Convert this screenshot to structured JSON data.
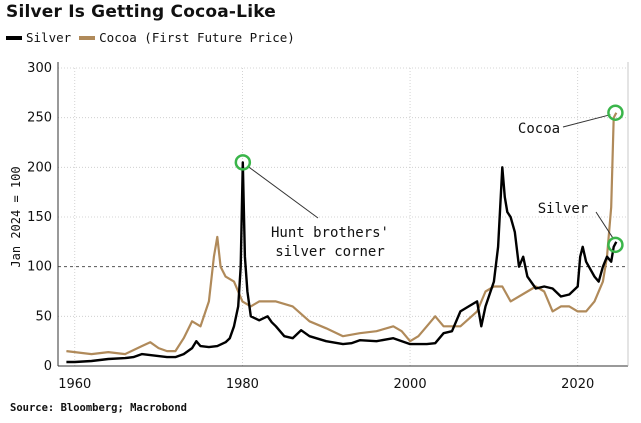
{
  "chart_data": {
    "type": "line",
    "title": "Silver Is Getting Cocoa-Like",
    "ylabel": "Jan 2024 = 100",
    "xlim": [
      1958,
      2026
    ],
    "ylim": [
      0,
      300
    ],
    "yticks": [
      0,
      50,
      100,
      150,
      200,
      250,
      300
    ],
    "xticks": [
      1960,
      1980,
      2000,
      2020
    ],
    "reference_line": 100,
    "grid": true,
    "legend_position": "top-left",
    "series": [
      {
        "name": "Silver",
        "color": "#000000",
        "x": [
          1959,
          1960,
          1962,
          1964,
          1966,
          1967,
          1968,
          1969,
          1970,
          1971,
          1972,
          1973,
          1974,
          1974.5,
          1975,
          1976,
          1977,
          1978,
          1978.5,
          1979,
          1979.5,
          1979.8,
          1980.05,
          1980.3,
          1980.6,
          1981,
          1982,
          1983,
          1983.5,
          1984,
          1985,
          1986,
          1987,
          1988,
          1990,
          1992,
          1993,
          1994,
          1996,
          1998,
          2000,
          2002,
          2003,
          2004,
          2005,
          2006,
          2007,
          2008,
          2008.5,
          2009,
          2010,
          2010.5,
          2011,
          2011.3,
          2011.6,
          2012,
          2012.5,
          2013,
          2013.5,
          2014,
          2015,
          2016,
          2017,
          2018,
          2019,
          2020,
          2020.3,
          2020.6,
          2021,
          2022,
          2022.5,
          2023,
          2023.5,
          2024,
          2024.3,
          2024.6
        ],
        "y": [
          4,
          4,
          5,
          7,
          8,
          9,
          12,
          11,
          10,
          9,
          9,
          12,
          18,
          25,
          20,
          19,
          20,
          24,
          28,
          40,
          60,
          100,
          205,
          110,
          75,
          50,
          46,
          50,
          44,
          40,
          30,
          28,
          36,
          30,
          25,
          22,
          23,
          26,
          25,
          28,
          22,
          22,
          23,
          33,
          35,
          55,
          60,
          65,
          40,
          60,
          85,
          120,
          200,
          170,
          155,
          150,
          135,
          100,
          110,
          90,
          78,
          80,
          78,
          70,
          72,
          80,
          110,
          120,
          105,
          90,
          85,
          100,
          110,
          105,
          120,
          125
        ]
      },
      {
        "name": "Cocoa (First Future Price)",
        "color": "#b08a5a",
        "x": [
          1959,
          1960,
          1962,
          1964,
          1966,
          1968,
          1969,
          1970,
          1971,
          1972,
          1973,
          1974,
          1975,
          1976,
          1976.6,
          1977,
          1977.4,
          1978,
          1979,
          1980,
          1981,
          1982,
          1984,
          1986,
          1988,
          1990,
          1992,
          1994,
          1996,
          1998,
          1999,
          2000,
          2001,
          2002,
          2003,
          2004,
          2006,
          2008,
          2009,
          2010,
          2011,
          2012,
          2014,
          2015,
          2016,
          2017,
          2018,
          2019,
          2020,
          2021,
          2022,
          2023,
          2023.5,
          2024,
          2024.3,
          2024.6
        ],
        "y": [
          15,
          14,
          12,
          14,
          12,
          20,
          24,
          18,
          15,
          15,
          28,
          45,
          40,
          65,
          110,
          130,
          100,
          90,
          85,
          65,
          60,
          65,
          65,
          60,
          45,
          38,
          30,
          33,
          35,
          40,
          35,
          25,
          30,
          40,
          50,
          40,
          40,
          55,
          75,
          80,
          80,
          65,
          75,
          80,
          75,
          55,
          60,
          60,
          55,
          55,
          65,
          85,
          110,
          160,
          250,
          255
        ]
      }
    ],
    "annotations": [
      {
        "text_lines": [
          "Hunt brothers'",
          "silver corner"
        ],
        "point": [
          1980.05,
          205
        ]
      },
      {
        "text": "Cocoa",
        "point": [
          2024.5,
          255
        ]
      },
      {
        "text": "Silver",
        "point": [
          2024.5,
          122
        ]
      }
    ],
    "source": "Source: Bloomberg; Macrobond"
  }
}
